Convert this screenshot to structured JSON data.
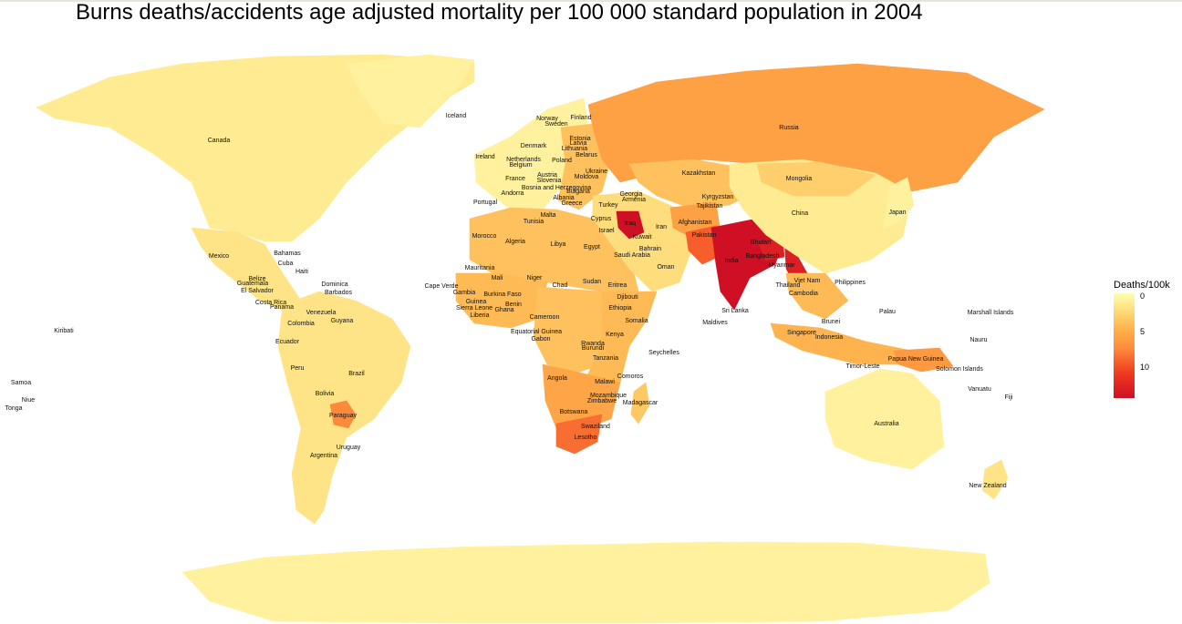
{
  "title": "Burns deaths/accidents age adjusted mortality per 100 000 standard population in 2004",
  "legend": {
    "title": "Deaths/100k",
    "ticks": [
      "0",
      "5",
      "10"
    ],
    "tick_values": [
      0,
      5,
      10
    ],
    "max": 14,
    "colors": [
      "#ffffb2",
      "#fed976",
      "#feb24c",
      "#fd8d3c",
      "#f03b20",
      "#cf0f23"
    ]
  },
  "map": {
    "ocean_color": "#ffffff",
    "region_values": {
      "north_america": 1.5,
      "greenland": 1.0,
      "central_america": 2.0,
      "south_america": 2.0,
      "paraguay": 8.5,
      "europe_west": 1.0,
      "europe_east": 4.5,
      "russia": 7.0,
      "north_africa": 4.5,
      "west_africa": 5.0,
      "central_africa": 4.5,
      "east_africa": 5.0,
      "southern_africa": 6.5,
      "south_africa": 9.5,
      "madagascar": 4.0,
      "middle_east": 2.5,
      "iraq": 14.0,
      "central_asia": 4.5,
      "afghanistan": 7.0,
      "pakistan": 10.0,
      "india": 14.0,
      "bangladesh": 13.0,
      "myanmar": 13.0,
      "china": 1.5,
      "mongolia": 3.5,
      "japan": 1.0,
      "southeast_asia": 5.0,
      "indonesia": 5.5,
      "papua_new_guinea": 7.5,
      "australia": 1.0,
      "new_zealand": 2.0,
      "antarctica": 1.0
    }
  },
  "labels": [
    "Canada",
    "Iceland",
    "Norway",
    "Sweden",
    "Finland",
    "Russia",
    "Estonia",
    "Latvia",
    "Lithuania",
    "Denmark",
    "Ireland",
    "Netherlands",
    "Belgium",
    "Poland",
    "Belarus",
    "Ukraine",
    "Moldova",
    "Austria",
    "Slovenia",
    "France",
    "Bosnia and Herzegovina",
    "Andorra",
    "Bulgaria",
    "Albania",
    "Portugal",
    "Greece",
    "Georgia",
    "Armenia",
    "Turkey",
    "Kazakhstan",
    "Mongolia",
    "Kyrgyzstan",
    "Tajikistan",
    "China",
    "Japan",
    "Malta",
    "Cyprus",
    "Tunisia",
    "Iraq",
    "Iran",
    "Afghanistan",
    "Israel",
    "Kuwait",
    "Morocco",
    "Algeria",
    "Libya",
    "Egypt",
    "Bahrain",
    "Saudi Arabia",
    "Pakistan",
    "Bhutan",
    "India",
    "Bangladesh",
    "Myanmar",
    "Oman",
    "Mauritania",
    "Mali",
    "Niger",
    "Chad",
    "Sudan",
    "Eritrea",
    "Djibouti",
    "Ethiopia",
    "Somalia",
    "Cape Verde",
    "Gambia",
    "Guinea",
    "Sierra Leone",
    "Liberia",
    "Burkina Faso",
    "Benin",
    "Ghana",
    "Cameroon",
    "Equatorial Guinea",
    "Gabon",
    "Kenya",
    "Rwanda",
    "Burundi",
    "Tanzania",
    "Comoros",
    "Malawi",
    "Angola",
    "Mozambique",
    "Zimbabwe",
    "Madagascar",
    "Botswana",
    "Swaziland",
    "Lesotho",
    "Seychelles",
    "Maldives",
    "Sri Lanka",
    "Thailand",
    "Viet Nam",
    "Cambodia",
    "Philippines",
    "Palau",
    "Marshall Islands",
    "Nauru",
    "Brunei",
    "Singapore",
    "Indonesia",
    "Timor-Leste",
    "Papua New Guinea",
    "Solomon Islands",
    "Vanuatu",
    "Fiji",
    "Australia",
    "New Zealand",
    "Mexico",
    "Bahamas",
    "Cuba",
    "Haiti",
    "Dominica",
    "Barbados",
    "Belize",
    "Guatemala",
    "El Salvador",
    "Costa Rica",
    "Panama",
    "Venezuela",
    "Guyana",
    "Colombia",
    "Ecuador",
    "Peru",
    "Brazil",
    "Bolivia",
    "Paraguay",
    "Uruguay",
    "Argentina",
    "Kiribati",
    "Samoa",
    "Niue",
    "Tonga"
  ]
}
